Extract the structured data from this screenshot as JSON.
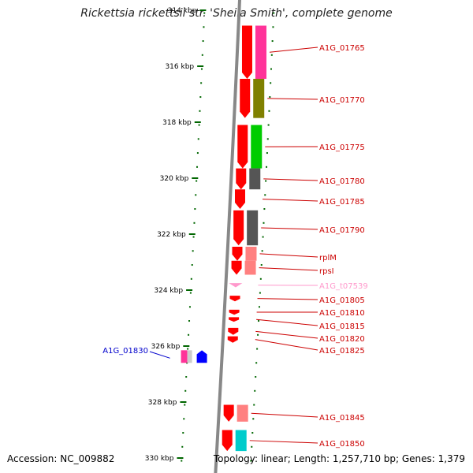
{
  "title": "Rickettsia rickettsii str. 'Sheila Smith', complete genome",
  "footer": {
    "accession": "Accession: NC_009882",
    "summary": "Topology: linear; Length: 1,257,710 bp; Genes: 1,379"
  },
  "axis": {
    "unit": "kbp",
    "ticks": [
      {
        "kbp": 314,
        "label": "314 kbp"
      },
      {
        "kbp": 316,
        "label": "316 kbp"
      },
      {
        "kbp": 318,
        "label": "318 kbp"
      },
      {
        "kbp": 320,
        "label": "320 kbp"
      },
      {
        "kbp": 322,
        "label": "322 kbp"
      },
      {
        "kbp": 324,
        "label": "324 kbp"
      },
      {
        "kbp": 326,
        "label": "326 kbp"
      },
      {
        "kbp": 328,
        "label": "328 kbp"
      },
      {
        "kbp": 330,
        "label": "330 kbp"
      }
    ]
  },
  "colors": {
    "gene_red": "#ff0000",
    "forward_gene": "#0000ff",
    "label_red": "#cc0000",
    "label_pink": "#ff99cc",
    "label_blue": "#0000cc",
    "tick_green": "#006600",
    "backbone": "#888888"
  },
  "genes": [
    {
      "label": "A1G_01765",
      "start": 314.55,
      "end": 316.45,
      "strand": "-",
      "cog_color": "#ff3399"
    },
    {
      "label": "A1G_01770",
      "start": 316.45,
      "end": 317.85,
      "strand": "-",
      "cog_color": "#808000"
    },
    {
      "label": "A1G_01775",
      "start": 318.1,
      "end": 319.65,
      "strand": "-",
      "cog_color": "#00cc00"
    },
    {
      "label": "A1G_01780",
      "start": 319.65,
      "end": 320.4,
      "strand": "-",
      "cog_color": "#555555"
    },
    {
      "label": "A1G_01785",
      "start": 320.4,
      "end": 321.1,
      "strand": "-",
      "cog_color": ""
    },
    {
      "label": "A1G_01790",
      "start": 321.15,
      "end": 322.4,
      "strand": "-",
      "cog_color": "#555555"
    },
    {
      "label": "rplM",
      "start": 322.45,
      "end": 322.95,
      "strand": "-",
      "cog_color": "#ff8080"
    },
    {
      "label": "rpsI",
      "start": 322.95,
      "end": 323.45,
      "strand": "-",
      "cog_color": "#ff8080"
    },
    {
      "label": "A1G_t07539",
      "start": 323.75,
      "end": 323.9,
      "strand": "-",
      "cog_color": "",
      "pseudo": true
    },
    {
      "label": "A1G_01805",
      "start": 324.2,
      "end": 324.4,
      "strand": "-",
      "cog_color": ""
    },
    {
      "label": "A1G_01810",
      "start": 324.7,
      "end": 324.88,
      "strand": "-",
      "cog_color": ""
    },
    {
      "label": "A1G_01815",
      "start": 324.97,
      "end": 325.13,
      "strand": "-",
      "cog_color": ""
    },
    {
      "label": "A1G_01820",
      "start": 325.35,
      "end": 325.6,
      "strand": "-",
      "cog_color": ""
    },
    {
      "label": "A1G_01825",
      "start": 325.65,
      "end": 325.88,
      "strand": "-",
      "cog_color": ""
    },
    {
      "label": "A1G_01830",
      "start": 326.15,
      "end": 326.6,
      "strand": "+",
      "cog_color": "#ff3399",
      "cog_color2": "#cccccc"
    },
    {
      "label": "A1G_01845",
      "start": 328.1,
      "end": 328.7,
      "strand": "-",
      "cog_color": "#ff8080"
    },
    {
      "label": "A1G_01850",
      "start": 329.0,
      "end": 329.75,
      "strand": "-",
      "cog_color": "#00cccc"
    }
  ]
}
